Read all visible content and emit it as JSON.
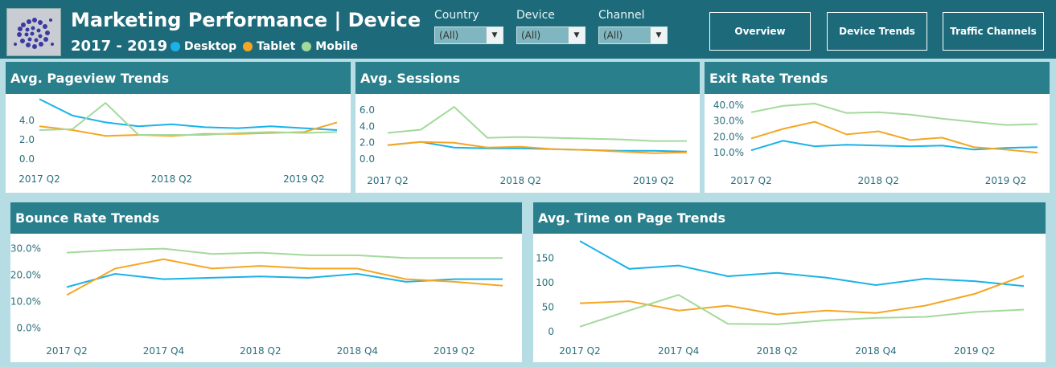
{
  "header": {
    "title": "Marketing Performance | Device",
    "years": "2017 - 2019",
    "legend": [
      {
        "label": "Desktop",
        "color": "#1ab2e8"
      },
      {
        "label": "Tablet",
        "color": "#f5a623"
      },
      {
        "label": "Mobile",
        "color": "#a3d99b"
      }
    ]
  },
  "filters": [
    {
      "label": "Country",
      "value": "(All)"
    },
    {
      "label": "Device",
      "value": "(All)"
    },
    {
      "label": "Channel",
      "value": "(All)"
    }
  ],
  "nav": [
    "Overview",
    "Device Trends",
    "Traffic Channels"
  ],
  "colors": {
    "header_bg": "#1d6b7a",
    "panel_header": "#2a7f8c",
    "page_bg": "#b5dde3",
    "desktop": "#1ab2e8",
    "tablet": "#f5a623",
    "mobile": "#a3d99b"
  },
  "chart_data": [
    {
      "id": "pageview",
      "type": "line",
      "title": "Avg. Pageview Trends",
      "x": [
        "2017 Q2",
        "2017 Q3",
        "2017 Q4",
        "2018 Q1",
        "2018 Q2",
        "2018 Q3",
        "2018 Q4",
        "2019 Q1",
        "2019 Q2",
        "2019 Q3"
      ],
      "xticks": [
        "2017 Q2",
        "2018 Q2",
        "2019 Q2"
      ],
      "yticks": [
        0,
        2,
        4
      ],
      "ylabels": [
        "0.0",
        "2.0",
        "4.0"
      ],
      "ylim": [
        -0.4,
        6.4
      ],
      "series": [
        {
          "name": "Desktop",
          "color": "#1ab2e8",
          "values": [
            6.2,
            4.5,
            3.8,
            3.4,
            3.6,
            3.3,
            3.2,
            3.4,
            3.2,
            3.0
          ]
        },
        {
          "name": "Tablet",
          "color": "#f5a623",
          "values": [
            3.4,
            3.0,
            2.4,
            2.5,
            2.4,
            2.6,
            2.6,
            2.7,
            2.8,
            3.8
          ]
        },
        {
          "name": "Mobile",
          "color": "#a3d99b",
          "values": [
            3.0,
            3.1,
            5.8,
            2.5,
            2.5,
            2.5,
            2.7,
            2.8,
            2.7,
            2.8
          ]
        }
      ]
    },
    {
      "id": "sessions",
      "type": "line",
      "title": "Avg. Sessions",
      "x": [
        "2017 Q2",
        "2017 Q3",
        "2017 Q4",
        "2018 Q1",
        "2018 Q2",
        "2018 Q3",
        "2018 Q4",
        "2019 Q1",
        "2019 Q2",
        "2019 Q3"
      ],
      "xticks": [
        "2017 Q2",
        "2018 Q2",
        "2019 Q2"
      ],
      "yticks": [
        0,
        2,
        4,
        6
      ],
      "ylabels": [
        "0.0",
        "2.0",
        "4.0",
        "6.0"
      ],
      "ylim": [
        -0.5,
        7.0
      ],
      "series": [
        {
          "name": "Desktop",
          "color": "#1ab2e8",
          "values": [
            1.7,
            2.1,
            1.4,
            1.3,
            1.3,
            1.2,
            1.1,
            1.0,
            1.0,
            0.9
          ]
        },
        {
          "name": "Tablet",
          "color": "#f5a623",
          "values": [
            1.7,
            2.1,
            2.0,
            1.4,
            1.5,
            1.2,
            1.1,
            0.9,
            0.7,
            0.8
          ]
        },
        {
          "name": "Mobile",
          "color": "#a3d99b",
          "values": [
            3.2,
            3.6,
            6.4,
            2.6,
            2.7,
            2.6,
            2.5,
            2.4,
            2.2,
            2.2
          ]
        }
      ]
    },
    {
      "id": "exit",
      "type": "line",
      "title": "Exit Rate Trends",
      "x": [
        "2017 Q2",
        "2017 Q3",
        "2017 Q4",
        "2018 Q1",
        "2018 Q2",
        "2018 Q3",
        "2018 Q4",
        "2019 Q1",
        "2019 Q2",
        "2019 Q3"
      ],
      "xticks": [
        "2017 Q2",
        "2018 Q2",
        "2019 Q2"
      ],
      "yticks": [
        10,
        20,
        30,
        40
      ],
      "ylabels": [
        "10.0%",
        "20.0%",
        "30.0%",
        "40.0%"
      ],
      "ylim": [
        5,
        42
      ],
      "series": [
        {
          "name": "Desktop",
          "color": "#1ab2e8",
          "values": [
            11.5,
            17.5,
            14.0,
            15.0,
            14.5,
            14.0,
            14.5,
            12.0,
            13.0,
            13.5
          ]
        },
        {
          "name": "Tablet",
          "color": "#f5a623",
          "values": [
            19.0,
            25.0,
            29.5,
            21.5,
            23.5,
            18.0,
            19.5,
            13.5,
            12.0,
            10.0
          ]
        },
        {
          "name": "Mobile",
          "color": "#a3d99b",
          "values": [
            35.5,
            39.5,
            41.0,
            35.0,
            35.5,
            34.0,
            31.5,
            29.5,
            27.5,
            28.0
          ]
        }
      ]
    },
    {
      "id": "bounce",
      "type": "line",
      "title": "Bounce Rate Trends",
      "x": [
        "2017 Q2",
        "2017 Q3",
        "2017 Q4",
        "2018 Q1",
        "2018 Q2",
        "2018 Q3",
        "2018 Q4",
        "2019 Q1",
        "2019 Q2",
        "2019 Q3"
      ],
      "xticks": [
        "2017 Q2",
        "2017 Q4",
        "2018 Q2",
        "2018 Q4",
        "2019 Q2"
      ],
      "yticks": [
        0,
        10,
        20,
        30
      ],
      "ylabels": [
        "0.0%",
        "10.0%",
        "20.0%",
        "30.0%"
      ],
      "ylim": [
        -1,
        32
      ],
      "series": [
        {
          "name": "Desktop",
          "color": "#1ab2e8",
          "values": [
            15.5,
            20.5,
            18.5,
            19.0,
            19.5,
            19.0,
            20.5,
            17.5,
            18.5,
            18.5
          ]
        },
        {
          "name": "Tablet",
          "color": "#f5a623",
          "values": [
            12.5,
            22.5,
            26.0,
            22.5,
            23.5,
            22.5,
            22.5,
            18.5,
            17.5,
            16.0
          ]
        },
        {
          "name": "Mobile",
          "color": "#a3d99b",
          "values": [
            28.5,
            29.5,
            30.0,
            28.0,
            28.5,
            27.5,
            27.5,
            26.5,
            26.5,
            26.5
          ]
        }
      ]
    },
    {
      "id": "timeonpage",
      "type": "line",
      "title": "Avg. Time on Page Trends",
      "x": [
        "2017 Q2",
        "2017 Q3",
        "2017 Q4",
        "2018 Q1",
        "2018 Q2",
        "2018 Q3",
        "2018 Q4",
        "2019 Q1",
        "2019 Q2",
        "2019 Q3"
      ],
      "xticks": [
        "2017 Q2",
        "2017 Q4",
        "2018 Q2",
        "2018 Q4",
        "2019 Q2"
      ],
      "yticks": [
        0,
        50,
        100,
        150
      ],
      "ylabels": [
        "0",
        "50",
        "100",
        "150"
      ],
      "ylim": [
        -5,
        190
      ],
      "series": [
        {
          "name": "Desktop",
          "color": "#1ab2e8",
          "values": [
            185,
            128,
            135,
            113,
            120,
            110,
            95,
            108,
            103,
            93
          ]
        },
        {
          "name": "Tablet",
          "color": "#f5a623",
          "values": [
            58,
            62,
            43,
            53,
            35,
            43,
            38,
            53,
            77,
            114
          ]
        },
        {
          "name": "Mobile",
          "color": "#a3d99b",
          "values": [
            10,
            43,
            75,
            16,
            15,
            23,
            28,
            30,
            40,
            45
          ]
        }
      ]
    }
  ]
}
